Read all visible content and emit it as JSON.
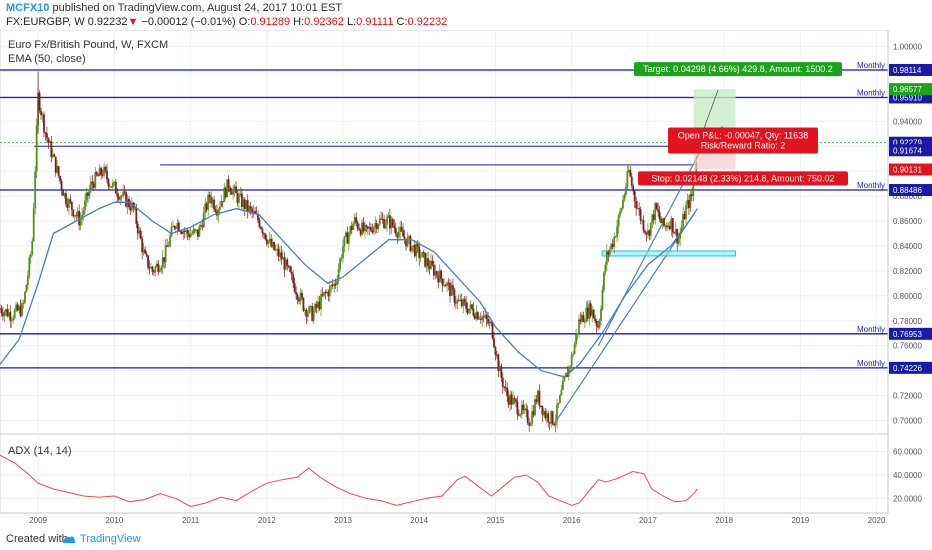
{
  "header": {
    "user": "MCFX10",
    "published_text": "published on TradingView.com, August 24, 2017 10:01 EST",
    "symbol": "FX:EURGBP, W",
    "last": "0.92232",
    "change_arrow": "▼",
    "change": "−0.00012 (−0.01%)",
    "o_label": "O:",
    "o_value": "0.91289",
    "h_label": "H:",
    "h_value": "0.92362",
    "l_label": "L:",
    "l_value": "0.91111",
    "c_label": "C:",
    "c_value": "0.92232"
  },
  "legend": {
    "title": "Euro Fx/British Pound, W, FXCM",
    "indicator": "EMA (50, close)",
    "adx_label": "ADX (14, 14)"
  },
  "footer": {
    "created": "Created with",
    "brand": "TradingView"
  },
  "colors": {
    "candle_up": "#5a8c1a",
    "candle_down": "#7a1f1f",
    "ema": "#4a7fb5",
    "level": "#1a1aa8",
    "accent": "#2196f3",
    "target": "#1ba31b",
    "stop": "#e0141e",
    "adx": "#e05050"
  },
  "chart_data": {
    "type": "candlestick",
    "ylim": [
      0.69,
      1.01
    ],
    "x_ticks": [
      "2009",
      "2010",
      "2011",
      "2012",
      "2013",
      "2014",
      "2015",
      "2016",
      "2017",
      "2018",
      "2019",
      "2020"
    ],
    "y_ticks": [
      "1.00000",
      "0.98000",
      "0.96000",
      "0.94000",
      "0.92000",
      "0.90000",
      "0.88000",
      "0.86000",
      "0.84000",
      "0.82000",
      "0.80000",
      "0.78000",
      "0.76000",
      "0.74000",
      "0.72000",
      "0.70000"
    ],
    "price_path": [
      [
        2008.5,
        0.79
      ],
      [
        2008.65,
        0.785
      ],
      [
        2008.8,
        0.79
      ],
      [
        2008.92,
        0.84
      ],
      [
        2009.0,
        0.96
      ],
      [
        2009.1,
        0.93
      ],
      [
        2009.2,
        0.91
      ],
      [
        2009.35,
        0.88
      ],
      [
        2009.45,
        0.87
      ],
      [
        2009.55,
        0.86
      ],
      [
        2009.7,
        0.89
      ],
      [
        2009.85,
        0.9
      ],
      [
        2009.95,
        0.89
      ],
      [
        2010.1,
        0.88
      ],
      [
        2010.25,
        0.87
      ],
      [
        2010.4,
        0.83
      ],
      [
        2010.5,
        0.82
      ],
      [
        2010.65,
        0.83
      ],
      [
        2010.8,
        0.86
      ],
      [
        2010.95,
        0.85
      ],
      [
        2011.1,
        0.85
      ],
      [
        2011.25,
        0.88
      ],
      [
        2011.35,
        0.87
      ],
      [
        2011.5,
        0.89
      ],
      [
        2011.6,
        0.88
      ],
      [
        2011.75,
        0.87
      ],
      [
        2011.9,
        0.86
      ],
      [
        2012.05,
        0.84
      ],
      [
        2012.2,
        0.83
      ],
      [
        2012.35,
        0.81
      ],
      [
        2012.5,
        0.79
      ],
      [
        2012.6,
        0.785
      ],
      [
        2012.75,
        0.8
      ],
      [
        2012.9,
        0.81
      ],
      [
        2013.0,
        0.84
      ],
      [
        2013.15,
        0.86
      ],
      [
        2013.3,
        0.85
      ],
      [
        2013.45,
        0.86
      ],
      [
        2013.6,
        0.86
      ],
      [
        2013.75,
        0.85
      ],
      [
        2013.9,
        0.84
      ],
      [
        2014.05,
        0.83
      ],
      [
        2014.2,
        0.82
      ],
      [
        2014.35,
        0.81
      ],
      [
        2014.5,
        0.795
      ],
      [
        2014.65,
        0.79
      ],
      [
        2014.8,
        0.785
      ],
      [
        2014.95,
        0.775
      ],
      [
        2015.05,
        0.74
      ],
      [
        2015.15,
        0.72
      ],
      [
        2015.3,
        0.71
      ],
      [
        2015.45,
        0.7
      ],
      [
        2015.55,
        0.72
      ],
      [
        2015.65,
        0.705
      ],
      [
        2015.78,
        0.7
      ],
      [
        2015.9,
        0.73
      ],
      [
        2016.0,
        0.75
      ],
      [
        2016.1,
        0.78
      ],
      [
        2016.25,
        0.79
      ],
      [
        2016.35,
        0.775
      ],
      [
        2016.45,
        0.83
      ],
      [
        2016.55,
        0.845
      ],
      [
        2016.65,
        0.87
      ],
      [
        2016.75,
        0.9
      ],
      [
        2016.82,
        0.88
      ],
      [
        2016.92,
        0.86
      ],
      [
        2017.0,
        0.85
      ],
      [
        2017.1,
        0.87
      ],
      [
        2017.2,
        0.855
      ],
      [
        2017.3,
        0.86
      ],
      [
        2017.4,
        0.845
      ],
      [
        2017.5,
        0.87
      ],
      [
        2017.58,
        0.88
      ],
      [
        2017.65,
        0.92
      ]
    ],
    "ema_path": [
      [
        2008.5,
        0.745
      ],
      [
        2008.75,
        0.765
      ],
      [
        2009.0,
        0.81
      ],
      [
        2009.2,
        0.85
      ],
      [
        2009.5,
        0.86
      ],
      [
        2009.8,
        0.87
      ],
      [
        2010.0,
        0.875
      ],
      [
        2010.2,
        0.875
      ],
      [
        2010.5,
        0.86
      ],
      [
        2010.75,
        0.85
      ],
      [
        2011.0,
        0.855
      ],
      [
        2011.3,
        0.865
      ],
      [
        2011.6,
        0.87
      ],
      [
        2011.9,
        0.865
      ],
      [
        2012.2,
        0.845
      ],
      [
        2012.5,
        0.825
      ],
      [
        2012.8,
        0.81
      ],
      [
        2013.0,
        0.815
      ],
      [
        2013.3,
        0.83
      ],
      [
        2013.6,
        0.845
      ],
      [
        2013.9,
        0.845
      ],
      [
        2014.2,
        0.835
      ],
      [
        2014.5,
        0.815
      ],
      [
        2014.8,
        0.795
      ],
      [
        2015.0,
        0.775
      ],
      [
        2015.3,
        0.755
      ],
      [
        2015.6,
        0.74
      ],
      [
        2015.9,
        0.735
      ],
      [
        2016.1,
        0.745
      ],
      [
        2016.4,
        0.77
      ],
      [
        2016.7,
        0.8
      ],
      [
        2017.0,
        0.825
      ],
      [
        2017.3,
        0.84
      ],
      [
        2017.6,
        0.865
      ]
    ],
    "levels": [
      {
        "label": "Monthly",
        "value": "0.98114",
        "y": 0.98114
      },
      {
        "label": "Monthly",
        "value": "0.95910",
        "y": 0.9591
      },
      {
        "label": "Monthly",
        "value": "0.88486",
        "y": 0.88486
      },
      {
        "label": "Monthly",
        "value": "0.76953",
        "y": 0.76953
      },
      {
        "label": "Monthly",
        "value": "0.74226",
        "y": 0.74226
      }
    ],
    "price_tags": [
      {
        "value": "0.96577",
        "y": 0.96577,
        "color": "#1ba31b"
      },
      {
        "value": "0.92279",
        "y": 0.92279,
        "color": "#1a1aa8"
      },
      {
        "value": "0.91674",
        "y": 0.91674,
        "color": "#1a1aa8"
      },
      {
        "value": "0.90131",
        "y": 0.90131,
        "color": "#e0141e"
      }
    ],
    "position": {
      "entry": 0.9228,
      "target": 0.96577,
      "stop": 0.90131,
      "target_text": "Target: 0.04298 (4.66%) 429.8, Amount: 1500.2",
      "pnl_text": "Open P&L: -0.00047, Qty: 11638",
      "rr_text": "Risk/Reward Ratio: 2",
      "stop_text": "Stop: 0.02148 (2.33%) 214.8, Amount: 750.02"
    },
    "support_zone": [
      0.832,
      0.836
    ],
    "adx": {
      "y_ticks": [
        "60.0000",
        "40.0000",
        "20.0000"
      ],
      "ylim": [
        10,
        70
      ],
      "path": [
        [
          2008.5,
          57
        ],
        [
          2008.7,
          50
        ],
        [
          2008.85,
          42
        ],
        [
          2009.0,
          33
        ],
        [
          2009.2,
          28
        ],
        [
          2009.4,
          25
        ],
        [
          2009.6,
          22
        ],
        [
          2009.8,
          21
        ],
        [
          2010.0,
          22
        ],
        [
          2010.2,
          17
        ],
        [
          2010.4,
          19
        ],
        [
          2010.6,
          24
        ],
        [
          2010.8,
          20
        ],
        [
          2011.0,
          13
        ],
        [
          2011.2,
          16
        ],
        [
          2011.4,
          21
        ],
        [
          2011.6,
          18
        ],
        [
          2011.8,
          26
        ],
        [
          2012.0,
          33
        ],
        [
          2012.2,
          36
        ],
        [
          2012.4,
          38
        ],
        [
          2012.55,
          46
        ],
        [
          2012.7,
          38
        ],
        [
          2012.9,
          30
        ],
        [
          2013.1,
          24
        ],
        [
          2013.3,
          20
        ],
        [
          2013.5,
          18
        ],
        [
          2013.7,
          14
        ],
        [
          2013.9,
          17
        ],
        [
          2014.1,
          20
        ],
        [
          2014.3,
          22
        ],
        [
          2014.5,
          36
        ],
        [
          2014.6,
          39
        ],
        [
          2014.8,
          29
        ],
        [
          2014.95,
          22
        ],
        [
          2015.1,
          30
        ],
        [
          2015.25,
          38
        ],
        [
          2015.4,
          40
        ],
        [
          2015.55,
          34
        ],
        [
          2015.7,
          22
        ],
        [
          2015.85,
          18
        ],
        [
          2016.0,
          14
        ],
        [
          2016.1,
          16
        ],
        [
          2016.25,
          28
        ],
        [
          2016.35,
          36
        ],
        [
          2016.45,
          34
        ],
        [
          2016.6,
          37
        ],
        [
          2016.8,
          43
        ],
        [
          2016.95,
          41
        ],
        [
          2017.05,
          28
        ],
        [
          2017.2,
          22
        ],
        [
          2017.35,
          17
        ],
        [
          2017.5,
          18
        ],
        [
          2017.6,
          24
        ],
        [
          2017.65,
          28
        ]
      ]
    }
  }
}
